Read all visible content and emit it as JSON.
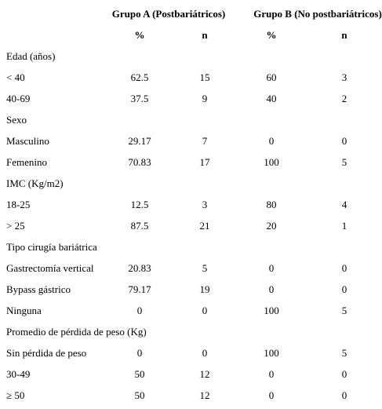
{
  "table": {
    "group_headers": [
      "Grupo A (Postbariátricos)",
      "Grupo B (No postbariátricos)"
    ],
    "subheaders": [
      "%",
      "n",
      "%",
      "n"
    ],
    "rows": [
      {
        "label": "Edad (años)"
      },
      {
        "label": "< 40",
        "cells": [
          "62.5",
          "15",
          "60",
          "3"
        ]
      },
      {
        "label": "40-69",
        "cells": [
          "37.5",
          "9",
          "40",
          "2"
        ]
      },
      {
        "label": "Sexo"
      },
      {
        "label": "Masculino",
        "cells": [
          "29.17",
          "7",
          "0",
          "0"
        ]
      },
      {
        "label": "Femenino",
        "cells": [
          "70.83",
          "17",
          "100",
          "5"
        ]
      },
      {
        "label": "IMC (Kg/m2)"
      },
      {
        "label": "18-25",
        "cells": [
          "12.5",
          "3",
          "80",
          "4"
        ]
      },
      {
        "label": "> 25",
        "cells": [
          "87.5",
          "21",
          "20",
          "1"
        ]
      },
      {
        "label": "Tipo cirugía bariátrica"
      },
      {
        "label": "Gastrectomía vertical",
        "cells": [
          "20.83",
          "5",
          "0",
          "0"
        ]
      },
      {
        "label": "Bypass gástrico",
        "cells": [
          "79.17",
          "19",
          "0",
          "0"
        ]
      },
      {
        "label": "Ninguna",
        "cells": [
          "0",
          "0",
          "100",
          "5"
        ]
      },
      {
        "label": "Promedio de pérdida de peso (Kg)"
      },
      {
        "label": "Sin pérdida de peso",
        "cells": [
          "0",
          "0",
          "100",
          "5"
        ]
      },
      {
        "label": "30-49",
        "cells": [
          "50",
          "12",
          "0",
          "0"
        ]
      },
      {
        "label": "≥ 50",
        "cells": [
          "50",
          "12",
          "0",
          "0"
        ]
      }
    ]
  }
}
